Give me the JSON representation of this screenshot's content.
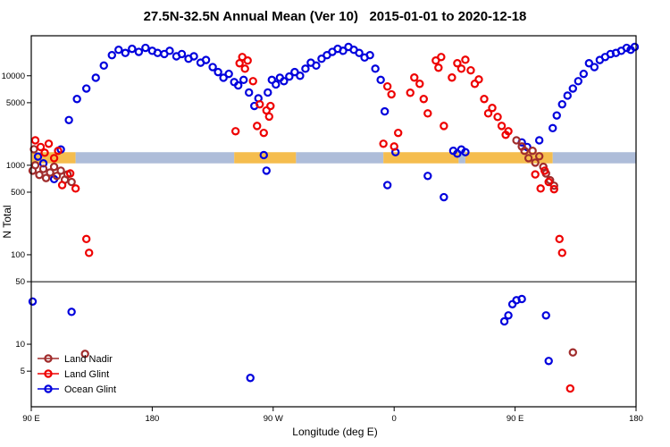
{
  "chart_data": {
    "type": "scatter",
    "title": "27.5N-32.5N Annual Mean (Ver 10)   2015-01-01 to 2020-12-18",
    "xlabel": "Longitude (deg E)",
    "ylabel": "N Total",
    "x_range": [
      90,
      540
    ],
    "y_range": [
      2,
      28000
    ],
    "y_scale": "log",
    "grid": false,
    "legend_position": "bottom-left",
    "reference_line_y": 50,
    "x_ticks": [
      {
        "v": 90,
        "label": "90 E"
      },
      {
        "v": 180,
        "label": "180"
      },
      {
        "v": 270,
        "label": "90 W"
      },
      {
        "v": 360,
        "label": "0"
      },
      {
        "v": 450,
        "label": "90 E"
      },
      {
        "v": 540,
        "label": "180"
      }
    ],
    "y_ticks": [
      {
        "v": 10000,
        "label": "10000"
      },
      {
        "v": 5000,
        "label": "5000"
      },
      {
        "v": 1000,
        "label": "1000"
      },
      {
        "v": 500,
        "label": "500"
      },
      {
        "v": 100,
        "label": "100"
      },
      {
        "v": 50,
        "label": "50"
      },
      {
        "v": 10,
        "label": "10"
      },
      {
        "v": 5,
        "label": "5"
      }
    ],
    "surface_band": {
      "n_low": 1050,
      "n_high": 1400,
      "ocean_color": "#aebdd9",
      "land_color": "#f5bd4e",
      "segments": [
        {
          "from": 90,
          "to": 123,
          "type": "land"
        },
        {
          "from": 123,
          "to": 241,
          "type": "ocean"
        },
        {
          "from": 241,
          "to": 287,
          "type": "land"
        },
        {
          "from": 287,
          "to": 352,
          "type": "ocean"
        },
        {
          "from": 352,
          "to": 408,
          "type": "land"
        },
        {
          "from": 408,
          "to": 413,
          "type": "ocean"
        },
        {
          "from": 413,
          "to": 478,
          "type": "land"
        },
        {
          "from": 478,
          "to": 540,
          "type": "ocean"
        }
      ]
    },
    "series": [
      {
        "name": "Ocean Glint",
        "color": "#0000dd",
        "points": [
          [
            95,
            1250
          ],
          [
            99,
            1050
          ],
          [
            107,
            700
          ],
          [
            112,
            1500
          ],
          [
            118,
            3200
          ],
          [
            124,
            5500
          ],
          [
            131,
            7200
          ],
          [
            138,
            9500
          ],
          [
            144,
            13000
          ],
          [
            150,
            17000
          ],
          [
            155,
            19500
          ],
          [
            160,
            18000
          ],
          [
            165,
            20000
          ],
          [
            170,
            18500
          ],
          [
            175,
            20500
          ],
          [
            180,
            19000
          ],
          [
            184,
            18000
          ],
          [
            189,
            17500
          ],
          [
            193,
            19000
          ],
          [
            198,
            16500
          ],
          [
            202,
            17500
          ],
          [
            207,
            15500
          ],
          [
            211,
            16500
          ],
          [
            216,
            14000
          ],
          [
            220,
            15000
          ],
          [
            225,
            12500
          ],
          [
            229,
            11000
          ],
          [
            233,
            9500
          ],
          [
            237,
            10500
          ],
          [
            241,
            8500
          ],
          [
            244,
            7800
          ],
          [
            248,
            9000
          ],
          [
            252,
            6500
          ],
          [
            256,
            4600
          ],
          [
            259,
            5600
          ],
          [
            263,
            1300
          ],
          [
            265,
            870
          ],
          [
            266,
            6500
          ],
          [
            269,
            9000
          ],
          [
            272,
            8000
          ],
          [
            275,
            9500
          ],
          [
            278,
            8700
          ],
          [
            282,
            9800
          ],
          [
            286,
            11000
          ],
          [
            290,
            10000
          ],
          [
            294,
            12000
          ],
          [
            298,
            14000
          ],
          [
            302,
            13000
          ],
          [
            306,
            15500
          ],
          [
            310,
            17000
          ],
          [
            314,
            18500
          ],
          [
            318,
            20000
          ],
          [
            322,
            19000
          ],
          [
            326,
            21000
          ],
          [
            330,
            19500
          ],
          [
            334,
            18000
          ],
          [
            338,
            16000
          ],
          [
            342,
            17000
          ],
          [
            346,
            12000
          ],
          [
            350,
            9000
          ],
          [
            353,
            4000
          ],
          [
            355,
            600
          ],
          [
            361,
            1400
          ],
          [
            385,
            760
          ],
          [
            397,
            440
          ],
          [
            404,
            1450
          ],
          [
            407,
            1350
          ],
          [
            410,
            1500
          ],
          [
            413,
            1400
          ],
          [
            455,
            1800
          ],
          [
            459,
            1600
          ],
          [
            468,
            1900
          ],
          [
            478,
            2600
          ],
          [
            481,
            3600
          ],
          [
            485,
            4800
          ],
          [
            489,
            6000
          ],
          [
            493,
            7200
          ],
          [
            497,
            8700
          ],
          [
            501,
            10500
          ],
          [
            505,
            13800
          ],
          [
            509,
            12500
          ],
          [
            513,
            15000
          ],
          [
            517,
            16200
          ],
          [
            521,
            17500
          ],
          [
            525,
            18000
          ],
          [
            529,
            19000
          ],
          [
            533,
            20500
          ],
          [
            536,
            19500
          ],
          [
            539,
            21000
          ],
          [
            91,
            30
          ],
          [
            120,
            23
          ],
          [
            253,
            4.2
          ],
          [
            442,
            18
          ],
          [
            445,
            21
          ],
          [
            448,
            28
          ],
          [
            451,
            31
          ],
          [
            455,
            32
          ],
          [
            473,
            21
          ],
          [
            475,
            6.5
          ]
        ]
      },
      {
        "name": "Land Nadir",
        "color": "#a02c2c",
        "points": [
          [
            91,
            870
          ],
          [
            92,
            1510
          ],
          [
            93,
            1000
          ],
          [
            96,
            780
          ],
          [
            99,
            910
          ],
          [
            101,
            720
          ],
          [
            104,
            830
          ],
          [
            107,
            960
          ],
          [
            109,
            760
          ],
          [
            112,
            870
          ],
          [
            115,
            690
          ],
          [
            117,
            790
          ],
          [
            120,
            650
          ],
          [
            451,
            1900
          ],
          [
            455,
            1620
          ],
          [
            457,
            1450
          ],
          [
            460,
            1200
          ],
          [
            463,
            1450
          ],
          [
            465,
            1070
          ],
          [
            468,
            1260
          ],
          [
            471,
            960
          ],
          [
            473,
            810
          ],
          [
            476,
            680
          ],
          [
            479,
            590
          ],
          [
            130,
            7.8
          ],
          [
            493,
            8.1
          ]
        ]
      },
      {
        "name": "Land Glint",
        "color": "#ee0000",
        "points": [
          [
            93,
            1900
          ],
          [
            97,
            1600
          ],
          [
            100,
            1380
          ],
          [
            103,
            1740
          ],
          [
            107,
            1200
          ],
          [
            110,
            1450
          ],
          [
            113,
            600
          ],
          [
            119,
            810
          ],
          [
            123,
            550
          ],
          [
            131,
            150
          ],
          [
            133,
            105
          ],
          [
            242,
            2400
          ],
          [
            245,
            13800
          ],
          [
            247,
            16200
          ],
          [
            249,
            12000
          ],
          [
            251,
            14800
          ],
          [
            255,
            8700
          ],
          [
            258,
            2750
          ],
          [
            260,
            4800
          ],
          [
            263,
            2300
          ],
          [
            265,
            4100
          ],
          [
            267,
            3500
          ],
          [
            268,
            4600
          ],
          [
            352,
            1740
          ],
          [
            355,
            7600
          ],
          [
            358,
            6200
          ],
          [
            360,
            1620
          ],
          [
            363,
            2300
          ],
          [
            372,
            6460
          ],
          [
            375,
            9550
          ],
          [
            379,
            8130
          ],
          [
            382,
            5500
          ],
          [
            385,
            3800
          ],
          [
            391,
            14800
          ],
          [
            393,
            12300
          ],
          [
            395,
            16200
          ],
          [
            397,
            2750
          ],
          [
            403,
            9550
          ],
          [
            407,
            13800
          ],
          [
            410,
            12000
          ],
          [
            413,
            15100
          ],
          [
            417,
            11500
          ],
          [
            420,
            8130
          ],
          [
            423,
            9100
          ],
          [
            427,
            5500
          ],
          [
            430,
            3800
          ],
          [
            433,
            4370
          ],
          [
            437,
            3470
          ],
          [
            440,
            2750
          ],
          [
            443,
            2190
          ],
          [
            445,
            2400
          ],
          [
            465,
            790
          ],
          [
            469,
            550
          ],
          [
            472,
            870
          ],
          [
            475,
            650
          ],
          [
            479,
            540
          ],
          [
            483,
            150
          ],
          [
            485,
            105
          ],
          [
            491,
            3.2
          ]
        ]
      }
    ],
    "legend_order": [
      "Land Nadir",
      "Land Glint",
      "Ocean Glint"
    ]
  }
}
